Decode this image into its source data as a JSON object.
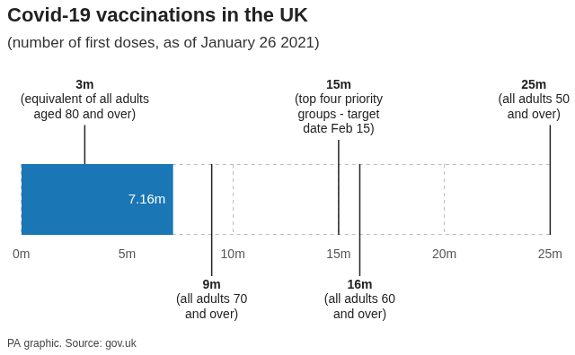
{
  "chart_data": {
    "type": "bar",
    "orientation": "horizontal",
    "title": "Covid-19 vaccinations in the UK",
    "subtitle": "(number of first doses, as of January 26 2021)",
    "categories": [
      null
    ],
    "values": [
      7.16
    ],
    "value_labels": [
      "7.16m"
    ],
    "data_labels": true,
    "color": "#1a76b5",
    "xlim": [
      0,
      25
    ],
    "xticks": [
      {
        "value": 0,
        "label": "0m"
      },
      {
        "value": 5,
        "label": "5m"
      },
      {
        "value": 10,
        "label": "10m"
      },
      {
        "value": 15,
        "label": "15m"
      },
      {
        "value": 20,
        "label": "20m"
      },
      {
        "value": 25,
        "label": "25m"
      }
    ],
    "grid": true,
    "tick_labels": "x",
    "legend": false,
    "annotations": [
      {
        "value": 3,
        "label": "3m",
        "text": [
          "(equivalent of all adults",
          "aged 80 and over)"
        ]
      },
      {
        "value": 9,
        "label": "9m",
        "text": [
          "(all adults 70",
          "and over)"
        ]
      },
      {
        "value": 15,
        "label": "15m",
        "text": [
          "(top four priority",
          "groups - target",
          "date Feb 15)"
        ]
      },
      {
        "value": 16,
        "label": "16m",
        "text": [
          "(all adults 60",
          "and over)"
        ]
      },
      {
        "value": 25,
        "label": "25m",
        "text": [
          "(all adults 50",
          "and over)"
        ]
      }
    ],
    "source": "PA graphic. Source: gov.uk"
  }
}
